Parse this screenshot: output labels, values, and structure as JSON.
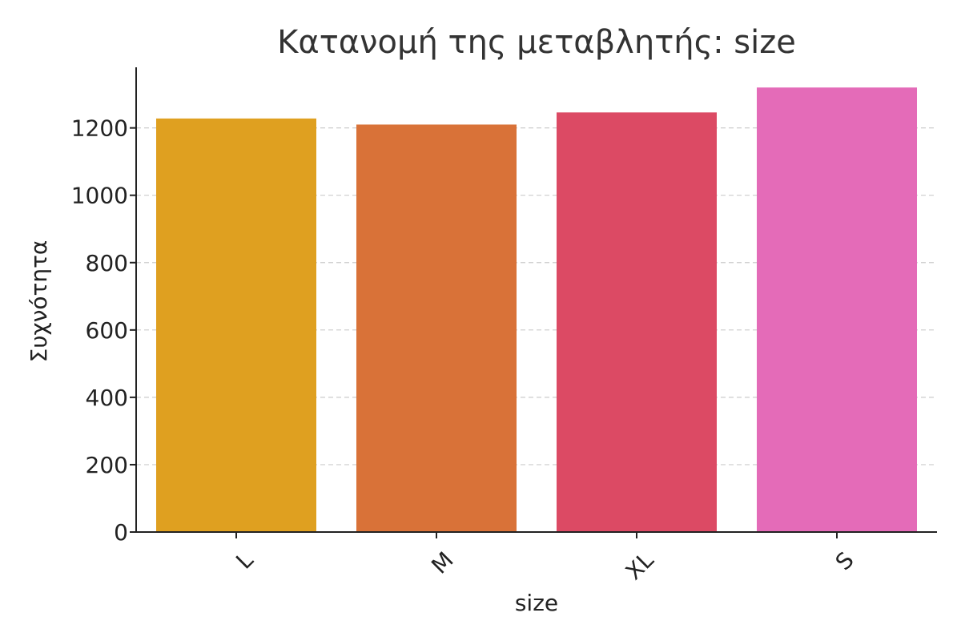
{
  "chart_data": {
    "type": "bar",
    "title": "Κατανομή της μεταβλητής: size",
    "xlabel": "size",
    "ylabel": "Συχνότητα",
    "categories": [
      "L",
      "M",
      "XL",
      "S"
    ],
    "values": [
      1228,
      1210,
      1246,
      1320
    ],
    "colors": [
      "#dfa020",
      "#d97238",
      "#dc4a64",
      "#e46bb8"
    ],
    "yticks": [
      0,
      200,
      400,
      600,
      800,
      1000,
      1200
    ],
    "ylim": [
      0,
      1380
    ],
    "grid": "horizontal dashed",
    "x_tick_rotation": "45"
  }
}
